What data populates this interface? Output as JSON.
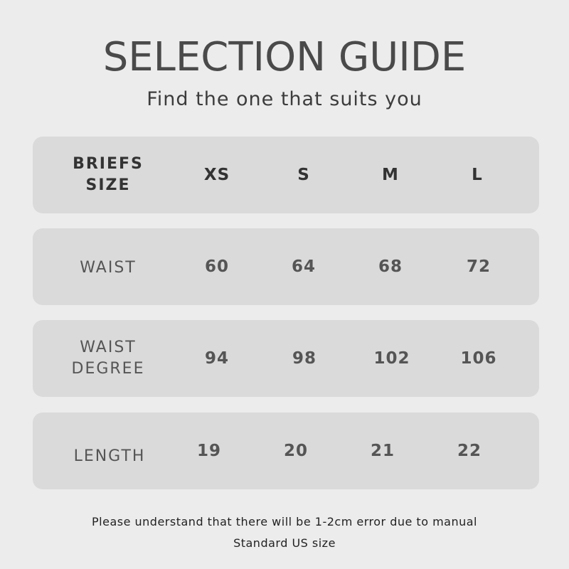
{
  "title": "SELECTION GUIDE",
  "subtitle": "Find the one that suits you",
  "table": {
    "header": {
      "label": [
        "BRIEFS",
        "SIZE"
      ],
      "values": [
        "XS",
        "S",
        "M",
        "L"
      ]
    },
    "rows": [
      {
        "label": [
          "WAIST"
        ],
        "values": [
          "60",
          "64",
          "68",
          "72"
        ]
      },
      {
        "label": [
          "WAIST",
          "DEGREE"
        ],
        "values": [
          "94",
          "98",
          "102",
          "106"
        ]
      },
      {
        "label": [
          "LENGTH"
        ],
        "values": [
          "19",
          "20",
          "21",
          "22"
        ]
      }
    ]
  },
  "footer": {
    "note": "Please understand that there will be 1-2cm error due to manual",
    "standard": "Standard US size"
  },
  "colors": {
    "background": "#ececec",
    "row": "#dadada",
    "text": "#444444"
  }
}
